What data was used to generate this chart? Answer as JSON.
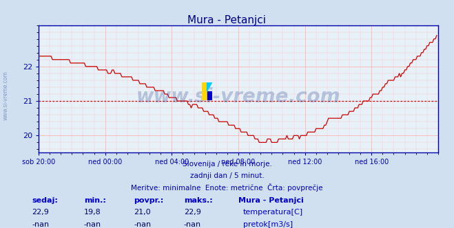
{
  "title": "Mura - Petanjci",
  "title_color": "#000080",
  "bg_color": "#d0e0f0",
  "plot_bg_color": "#e8f0f8",
  "line_color": "#cc0000",
  "avg_line_color": "#cc0000",
  "avg_line_value": 21.0,
  "axis_color": "#0000aa",
  "grid_color": "#ffaaaa",
  "x_tick_labels": [
    "sob 20:00",
    "ned 00:00",
    "ned 04:00",
    "ned 08:00",
    "ned 12:00",
    "ned 16:00"
  ],
  "x_tick_positions": [
    0,
    48,
    96,
    144,
    192,
    240
  ],
  "y_ticks": [
    20,
    21,
    22
  ],
  "ylim": [
    19.5,
    23.2
  ],
  "xlim": [
    0,
    288
  ],
  "text_lines": [
    "Slovenija / reke in morje.",
    "zadnji dan / 5 minut.",
    "Meritve: minimalne  Enote: metrične  Črta: povprečje"
  ],
  "footer_color": "#0000aa",
  "watermark": "www.si-vreme.com",
  "watermark_color": "#4060a0",
  "watermark_alpha": 0.3,
  "sidebar_text": "www.si-vreme.com",
  "table_headers": [
    "sedaj:",
    "min.:",
    "povpr.:",
    "maks.:"
  ],
  "table_values_temp": [
    "22,9",
    "19,8",
    "21,0",
    "22,9"
  ],
  "table_values_flow": [
    "-nan",
    "-nan",
    "-nan",
    "-nan"
  ],
  "station_label": "Mura - Petanjci",
  "legend_temp": "temperatura[C]",
  "legend_flow": "pretok[m3/s]",
  "legend_color_temp": "#cc0000",
  "legend_color_flow": "#00aa00",
  "table_label_color": "#0000cc",
  "table_value_color": "#000066",
  "bottom_line_color": "#0000cc"
}
